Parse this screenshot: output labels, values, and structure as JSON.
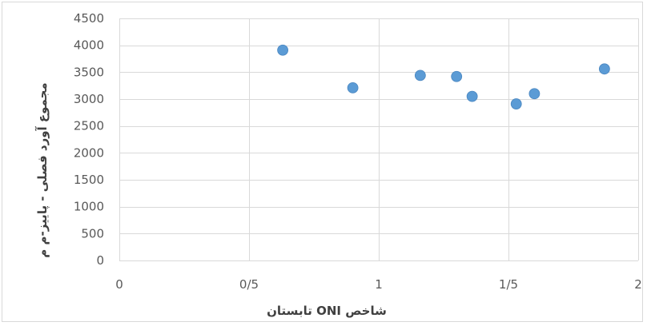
{
  "chart_data": {
    "type": "scatter",
    "title": "",
    "xlabel": "شاخص ONI تابستان",
    "ylabel": "مجموع آورد فصلی - پاییز-م م",
    "xlim": [
      0,
      2
    ],
    "ylim": [
      0,
      4500
    ],
    "x_ticks": [
      0,
      0.5,
      1,
      1.5,
      2
    ],
    "x_tick_labels": [
      "0",
      "0/5",
      "1",
      "1/5",
      "2"
    ],
    "y_ticks": [
      0,
      500,
      1000,
      1500,
      2000,
      2500,
      3000,
      3500,
      4000,
      4500
    ],
    "y_tick_labels": [
      "0",
      "500",
      "1000",
      "1500",
      "2000",
      "2500",
      "3000",
      "3500",
      "4000",
      "4500"
    ],
    "grid": true,
    "marker_color": "#5b9bd5",
    "points": [
      {
        "x": 0.63,
        "y": 3910
      },
      {
        "x": 0.9,
        "y": 3210
      },
      {
        "x": 1.16,
        "y": 3440
      },
      {
        "x": 1.3,
        "y": 3420
      },
      {
        "x": 1.36,
        "y": 3050
      },
      {
        "x": 1.53,
        "y": 2910
      },
      {
        "x": 1.6,
        "y": 3100
      },
      {
        "x": 1.87,
        "y": 3560
      }
    ]
  }
}
